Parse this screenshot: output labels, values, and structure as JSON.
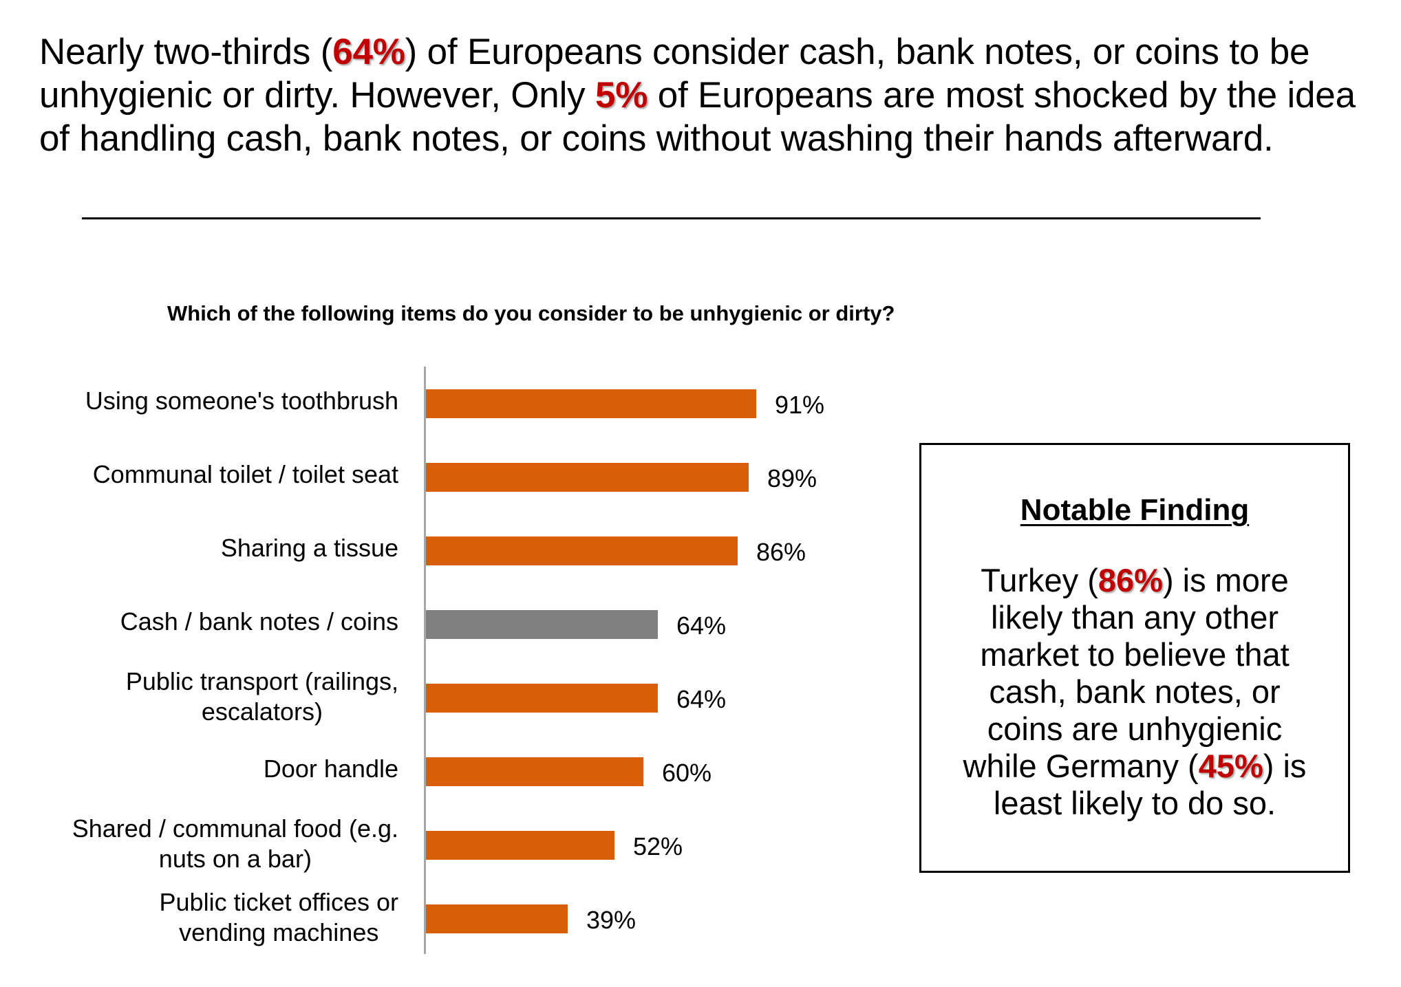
{
  "headline": {
    "parts": [
      {
        "text": "Nearly two-thirds (",
        "highlight": false
      },
      {
        "text": "64%",
        "highlight": true
      },
      {
        "text": ") of Europeans consider cash, bank notes, or coins to be unhygienic or dirty. However, Only ",
        "highlight": false
      },
      {
        "text": "5%",
        "highlight": true
      },
      {
        "text": " of Europeans are most shocked by the idea of handling cash, bank notes, or coins without washing their hands afterward.",
        "highlight": false
      }
    ]
  },
  "colors": {
    "bar_default": "#d95f07",
    "bar_highlight": "#808080",
    "highlight_text": "#c00000",
    "axis": "#a6a6a6"
  },
  "chart_data": {
    "type": "bar",
    "orientation": "horizontal",
    "title": "Which of the following items do you consider to be unhygienic or dirty?",
    "xlabel": "",
    "ylabel": "",
    "xlim": [
      0,
      100
    ],
    "grid": false,
    "legend": null,
    "categories": [
      "Using someone's toothbrush",
      "Communal toilet / toilet seat",
      "Sharing a tissue",
      "Cash / bank notes / coins",
      "Public transport (railings, escalators)",
      "Door handle",
      "Shared / communal food (e.g. nuts on a bar)",
      "Public ticket offices or vending machines"
    ],
    "values": [
      91,
      89,
      86,
      64,
      64,
      60,
      52,
      39
    ],
    "value_labels": [
      "91%",
      "89%",
      "86%",
      "64%",
      "64%",
      "60%",
      "52%",
      "39%"
    ],
    "highlighted_category": "Cash / bank notes / coins"
  },
  "chart_rows": [
    {
      "label_lines": [
        "Using someone's toothbrush"
      ],
      "value": 91,
      "value_label": "91%",
      "highlight": false
    },
    {
      "label_lines": [
        "Communal toilet / toilet seat"
      ],
      "value": 89,
      "value_label": "89%",
      "highlight": false
    },
    {
      "label_lines": [
        "Sharing a tissue"
      ],
      "value": 86,
      "value_label": "86%",
      "highlight": false
    },
    {
      "label_lines": [
        "Cash / bank notes / coins"
      ],
      "value": 64,
      "value_label": "64%",
      "highlight": true
    },
    {
      "label_lines": [
        "Public transport (railings,",
        "escalators)"
      ],
      "value": 64,
      "value_label": "64%",
      "highlight": false
    },
    {
      "label_lines": [
        "Door handle"
      ],
      "value": 60,
      "value_label": "60%",
      "highlight": false
    },
    {
      "label_lines": [
        "Shared / communal food (e.g.",
        "nuts on a bar)"
      ],
      "value": 52,
      "value_label": "52%",
      "highlight": false
    },
    {
      "label_lines": [
        "Public ticket offices or",
        "vending machines"
      ],
      "value": 39,
      "value_label": "39%",
      "highlight": false
    }
  ],
  "notable_finding": {
    "title": "Notable Finding",
    "parts": [
      {
        "text": "Turkey (",
        "highlight": false
      },
      {
        "text": "86%",
        "highlight": true
      },
      {
        "text": ") is more likely than any other market to believe that cash, bank notes, or coins are unhygienic while Germany (",
        "highlight": false
      },
      {
        "text": "45%",
        "highlight": true
      },
      {
        "text": ") is least likely to do so.",
        "highlight": false
      }
    ]
  }
}
